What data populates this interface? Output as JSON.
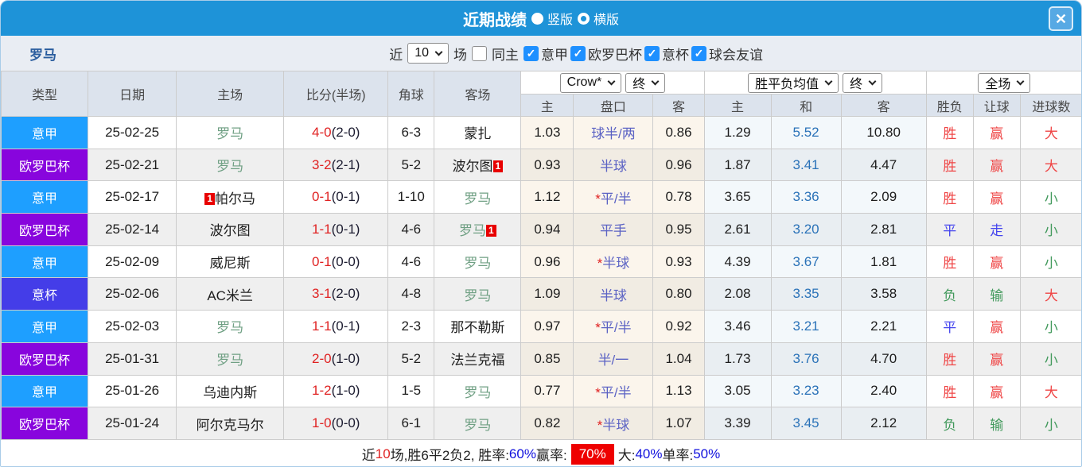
{
  "icons": {
    "close": "✕",
    "check": "✓"
  },
  "window": {
    "title": "近期战绩",
    "layout_options": [
      {
        "label": "竖版",
        "selected": true
      },
      {
        "label": "横版",
        "selected": false
      }
    ]
  },
  "filter": {
    "team": "罗马",
    "recent_label": "近",
    "recent_count": "10",
    "matches_label": "场",
    "same_home": {
      "label": "同主",
      "checked": false
    },
    "leagues": [
      {
        "label": "意甲",
        "checked": true
      },
      {
        "label": "欧罗巴杯",
        "checked": true
      },
      {
        "label": "意杯",
        "checked": true
      },
      {
        "label": "球会友谊",
        "checked": true
      }
    ]
  },
  "table": {
    "columns": [
      "类型",
      "日期",
      "主场",
      "比分(半场)",
      "角球",
      "客场",
      "主",
      "盘口",
      "客",
      "主",
      "和",
      "客",
      "胜负",
      "让球",
      "进球数"
    ],
    "selects": {
      "odds_company": "Crow*",
      "ah_time": "终",
      "avg_type": "胜平负均值",
      "avg_time": "终",
      "scope": "全场"
    },
    "star_glyph": "*",
    "league_colors": {
      "意甲": "#1e9fff",
      "欧罗巴杯": "#8805dd",
      "意杯": "#443de8"
    },
    "rows": [
      {
        "league": "意甲",
        "date": "25-02-25",
        "home": {
          "name": "罗马",
          "green": true
        },
        "score": {
          "ft": "4-0",
          "ht": "(2-0)"
        },
        "corners": "6-3",
        "away": {
          "name": "蒙扎"
        },
        "ah": {
          "home": "1.03",
          "line": "球半/两",
          "star": false,
          "away": "0.86"
        },
        "odds": {
          "home": "1.29",
          "draw": "5.52",
          "away": "10.80"
        },
        "results": [
          {
            "t": "胜",
            "c": "r"
          },
          {
            "t": "赢",
            "c": "r"
          },
          {
            "t": "大",
            "c": "r"
          }
        ]
      },
      {
        "league": "欧罗巴杯",
        "date": "25-02-21",
        "home": {
          "name": "罗马",
          "green": true
        },
        "score": {
          "ft": "3-2",
          "ht": "(2-1)"
        },
        "corners": "5-2",
        "away": {
          "name": "波尔图",
          "card": "1",
          "card_pos": "post"
        },
        "ah": {
          "home": "0.93",
          "line": "半球",
          "star": false,
          "away": "0.96"
        },
        "odds": {
          "home": "1.87",
          "draw": "3.41",
          "away": "4.47"
        },
        "results": [
          {
            "t": "胜",
            "c": "r"
          },
          {
            "t": "赢",
            "c": "r"
          },
          {
            "t": "大",
            "c": "r"
          }
        ]
      },
      {
        "league": "意甲",
        "date": "25-02-17",
        "home": {
          "name": "帕尔马",
          "card": "1",
          "card_pos": "pre"
        },
        "score": {
          "ft": "0-1",
          "ht": "(0-1)"
        },
        "corners": "1-10",
        "away": {
          "name": "罗马",
          "green": true
        },
        "ah": {
          "home": "1.12",
          "line": "平/半",
          "star": true,
          "away": "0.78"
        },
        "odds": {
          "home": "3.65",
          "draw": "3.36",
          "away": "2.09"
        },
        "results": [
          {
            "t": "胜",
            "c": "r"
          },
          {
            "t": "赢",
            "c": "r"
          },
          {
            "t": "小",
            "c": "g"
          }
        ]
      },
      {
        "league": "欧罗巴杯",
        "date": "25-02-14",
        "home": {
          "name": "波尔图"
        },
        "score": {
          "ft": "1-1",
          "ht": "(0-1)"
        },
        "corners": "4-6",
        "away": {
          "name": "罗马",
          "green": true,
          "card": "1",
          "card_pos": "post"
        },
        "ah": {
          "home": "0.94",
          "line": "平手",
          "star": false,
          "away": "0.95"
        },
        "odds": {
          "home": "2.61",
          "draw": "3.20",
          "away": "2.81"
        },
        "results": [
          {
            "t": "平",
            "c": "b"
          },
          {
            "t": "走",
            "c": "b"
          },
          {
            "t": "小",
            "c": "g"
          }
        ]
      },
      {
        "league": "意甲",
        "date": "25-02-09",
        "home": {
          "name": "威尼斯"
        },
        "score": {
          "ft": "0-1",
          "ht": "(0-0)"
        },
        "corners": "4-6",
        "away": {
          "name": "罗马",
          "green": true
        },
        "ah": {
          "home": "0.96",
          "line": "半球",
          "star": true,
          "away": "0.93"
        },
        "odds": {
          "home": "4.39",
          "draw": "3.67",
          "away": "1.81"
        },
        "results": [
          {
            "t": "胜",
            "c": "r"
          },
          {
            "t": "赢",
            "c": "r"
          },
          {
            "t": "小",
            "c": "g"
          }
        ]
      },
      {
        "league": "意杯",
        "date": "25-02-06",
        "home": {
          "name": "AC米兰"
        },
        "score": {
          "ft": "3-1",
          "ht": "(2-0)"
        },
        "corners": "4-8",
        "away": {
          "name": "罗马",
          "green": true
        },
        "ah": {
          "home": "1.09",
          "line": "半球",
          "star": false,
          "away": "0.80"
        },
        "odds": {
          "home": "2.08",
          "draw": "3.35",
          "away": "3.58"
        },
        "results": [
          {
            "t": "负",
            "c": "g"
          },
          {
            "t": "输",
            "c": "g"
          },
          {
            "t": "大",
            "c": "r"
          }
        ]
      },
      {
        "league": "意甲",
        "date": "25-02-03",
        "home": {
          "name": "罗马",
          "green": true
        },
        "score": {
          "ft": "1-1",
          "ht": "(0-1)"
        },
        "corners": "2-3",
        "away": {
          "name": "那不勒斯"
        },
        "ah": {
          "home": "0.97",
          "line": "平/半",
          "star": true,
          "away": "0.92"
        },
        "odds": {
          "home": "3.46",
          "draw": "3.21",
          "away": "2.21"
        },
        "results": [
          {
            "t": "平",
            "c": "b"
          },
          {
            "t": "赢",
            "c": "r"
          },
          {
            "t": "小",
            "c": "g"
          }
        ]
      },
      {
        "league": "欧罗巴杯",
        "date": "25-01-31",
        "home": {
          "name": "罗马",
          "green": true
        },
        "score": {
          "ft": "2-0",
          "ht": "(1-0)"
        },
        "corners": "5-2",
        "away": {
          "name": "法兰克福"
        },
        "ah": {
          "home": "0.85",
          "line": "半/一",
          "star": false,
          "away": "1.04"
        },
        "odds": {
          "home": "1.73",
          "draw": "3.76",
          "away": "4.70"
        },
        "results": [
          {
            "t": "胜",
            "c": "r"
          },
          {
            "t": "赢",
            "c": "r"
          },
          {
            "t": "小",
            "c": "g"
          }
        ]
      },
      {
        "league": "意甲",
        "date": "25-01-26",
        "home": {
          "name": "乌迪内斯"
        },
        "score": {
          "ft": "1-2",
          "ht": "(1-0)"
        },
        "corners": "1-5",
        "away": {
          "name": "罗马",
          "green": true
        },
        "ah": {
          "home": "0.77",
          "line": "平/半",
          "star": true,
          "away": "1.13"
        },
        "odds": {
          "home": "3.05",
          "draw": "3.23",
          "away": "2.40"
        },
        "results": [
          {
            "t": "胜",
            "c": "r"
          },
          {
            "t": "赢",
            "c": "r"
          },
          {
            "t": "大",
            "c": "r"
          }
        ]
      },
      {
        "league": "欧罗巴杯",
        "date": "25-01-24",
        "home": {
          "name": "阿尔克马尔"
        },
        "score": {
          "ft": "1-0",
          "ht": "(0-0)"
        },
        "corners": "6-1",
        "away": {
          "name": "罗马",
          "green": true
        },
        "ah": {
          "home": "0.82",
          "line": "半球",
          "star": true,
          "away": "1.07"
        },
        "odds": {
          "home": "3.39",
          "draw": "3.45",
          "away": "2.12"
        },
        "results": [
          {
            "t": "负",
            "c": "g"
          },
          {
            "t": "输",
            "c": "g"
          },
          {
            "t": "小",
            "c": "g"
          }
        ]
      }
    ]
  },
  "summary": {
    "segments": [
      {
        "text": "近",
        "style": "plain"
      },
      {
        "text": "10",
        "style": "red"
      },
      {
        "text": "场,胜6平2负2, 胜率:",
        "style": "plain"
      },
      {
        "text": "60%",
        "style": "blue"
      },
      {
        "text": " 赢率:",
        "style": "plain"
      },
      {
        "text": "70%",
        "style": "redbg"
      },
      {
        "text": " 大:",
        "style": "plain"
      },
      {
        "text": "40%",
        "style": "blue"
      },
      {
        "text": " 单率:",
        "style": "plain"
      },
      {
        "text": "50%",
        "style": "blue"
      }
    ]
  }
}
